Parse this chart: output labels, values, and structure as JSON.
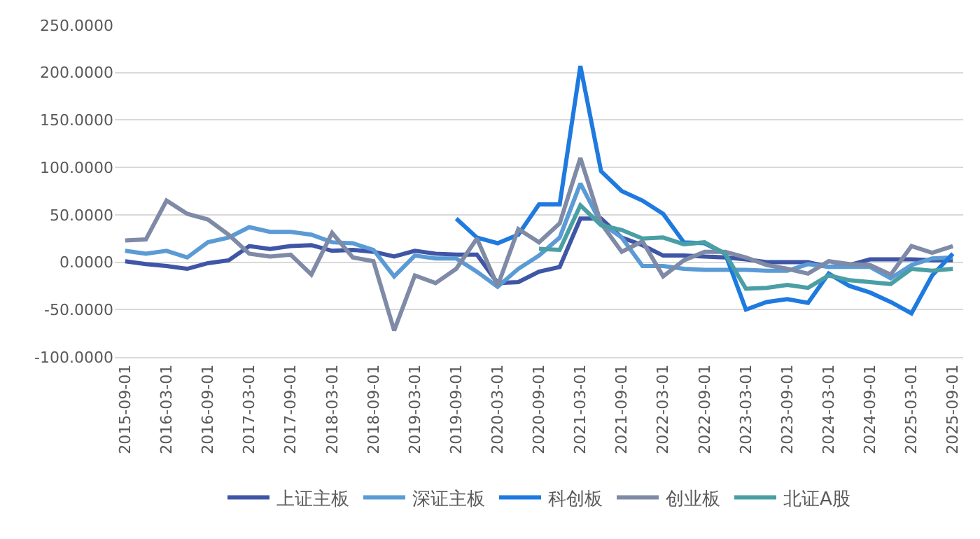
{
  "chart_data": {
    "type": "line",
    "categories": [
      "2015-09-01",
      null,
      "2016-03-01",
      null,
      "2016-09-01",
      null,
      "2017-03-01",
      null,
      "2017-09-01",
      null,
      "2018-03-01",
      null,
      "2018-09-01",
      null,
      "2019-03-01",
      null,
      "2019-09-01",
      null,
      "2020-03-01",
      null,
      "2020-09-01",
      null,
      "2021-03-01",
      null,
      "2021-09-01",
      null,
      "2022-03-01",
      null,
      "2022-09-01",
      null,
      "2023-03-01",
      null,
      "2023-09-01",
      null,
      "2024-03-01",
      null,
      "2024-09-01",
      null,
      "2025-03-01",
      null,
      "2025-09-01"
    ],
    "series": [
      {
        "name": "上证主板",
        "color": "#3f56a6",
        "values": [
          1,
          -2,
          -4,
          -7,
          -1,
          2,
          17,
          14,
          17,
          18,
          12,
          13,
          11,
          6,
          12,
          9,
          8,
          8,
          -22,
          -21,
          -10,
          -5,
          46,
          46,
          26,
          18,
          7,
          7,
          6,
          5,
          3,
          0,
          0,
          0,
          -5,
          -3,
          3,
          3,
          3,
          2,
          2
        ]
      },
      {
        "name": "深证主板",
        "color": "#5b9bd5",
        "values": [
          12,
          9,
          12,
          5,
          21,
          26,
          37,
          32,
          32,
          29,
          21,
          20,
          13,
          -15,
          7,
          4,
          4,
          -10,
          -26,
          -7,
          7,
          26,
          83,
          41,
          26,
          -4,
          -4,
          -7,
          -8,
          -8,
          -8,
          -9,
          -9,
          -2,
          -5,
          -5,
          -5,
          -17,
          -3,
          4,
          5
        ]
      },
      {
        "name": "科创板",
        "color": "#1f7ae0",
        "values": [
          null,
          null,
          null,
          null,
          null,
          null,
          null,
          null,
          null,
          null,
          null,
          null,
          null,
          null,
          null,
          null,
          46,
          26,
          20,
          29,
          61,
          61,
          207,
          96,
          75,
          65,
          51,
          21,
          20,
          9,
          -50,
          -42,
          -39,
          -43,
          -12,
          -25,
          -32,
          -42,
          -54,
          -14,
          9
        ]
      },
      {
        "name": "创业板",
        "color": "#7f8aa6",
        "values": [
          23,
          24,
          65,
          51,
          45,
          29,
          9,
          6,
          8,
          -13,
          31,
          5,
          1,
          -72,
          -14,
          -22,
          -7,
          25,
          -25,
          35,
          21,
          41,
          110,
          41,
          11,
          22,
          -15,
          2,
          11,
          11,
          5,
          -3,
          -7,
          -12,
          1,
          -2,
          -3,
          -13,
          17,
          10,
          17
        ]
      },
      {
        "name": "北证A股",
        "color": "#4a9fa5",
        "values": [
          null,
          null,
          null,
          null,
          null,
          null,
          null,
          null,
          null,
          null,
          null,
          null,
          null,
          null,
          null,
          null,
          null,
          null,
          null,
          null,
          14,
          13,
          60,
          39,
          34,
          25,
          26,
          19,
          21,
          9,
          -28,
          -27,
          -24,
          -27,
          -14,
          -19,
          -21,
          -23,
          -7,
          -9,
          -7
        ]
      }
    ],
    "ylim": [
      -100,
      250
    ],
    "yticks": [
      {
        "value": -100,
        "label": "-100.0000"
      },
      {
        "value": -50,
        "label": "-50.0000"
      },
      {
        "value": 0,
        "label": "0.0000"
      },
      {
        "value": 50,
        "label": "50.0000"
      },
      {
        "value": 100,
        "label": "100.0000"
      },
      {
        "value": 150,
        "label": "150.0000"
      },
      {
        "value": 200,
        "label": "200.0000"
      },
      {
        "value": 250,
        "label": "250.0000"
      }
    ],
    "grid": "y",
    "legend": "bottom"
  }
}
